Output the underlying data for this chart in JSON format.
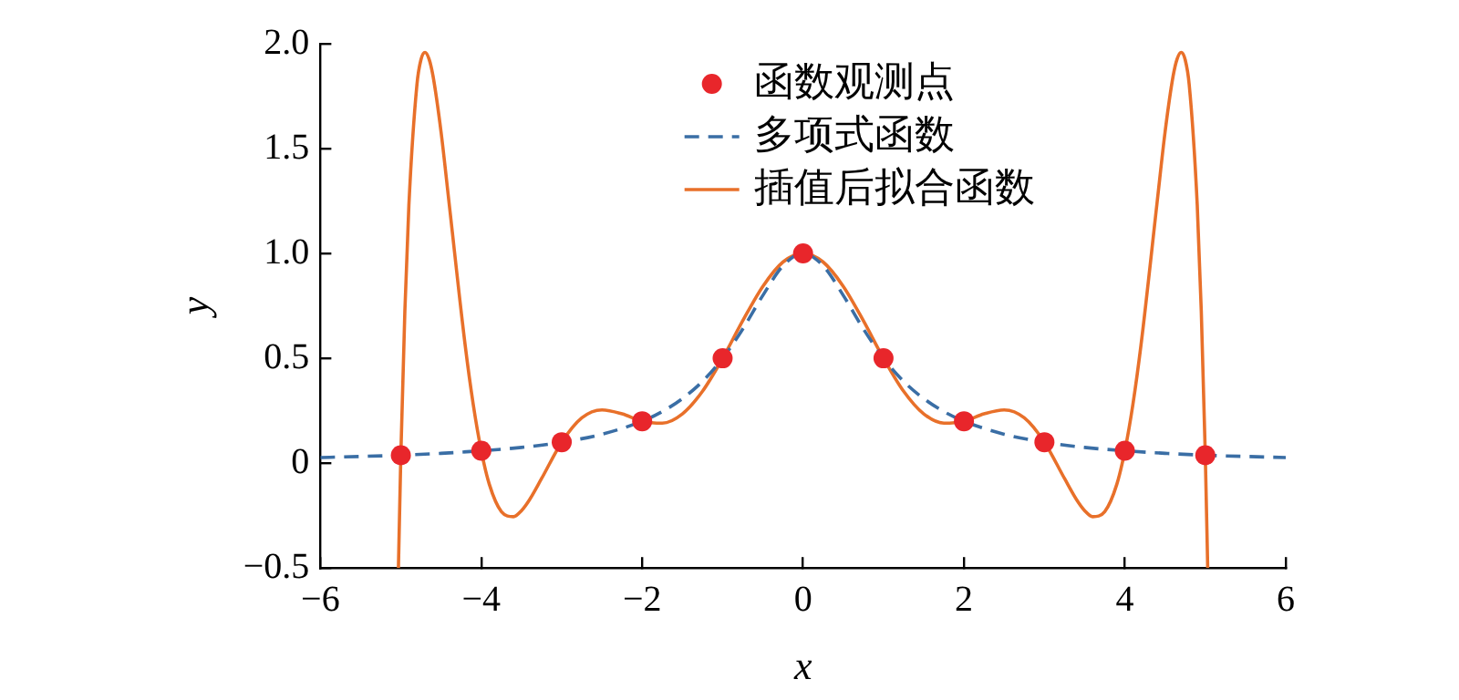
{
  "chart_data": {
    "type": "line",
    "xlabel": "x",
    "ylabel": "y",
    "xlim": [
      -6,
      6
    ],
    "xticks": [
      {
        "value": -6,
        "label": "−6"
      },
      {
        "value": -4,
        "label": "−4"
      },
      {
        "value": -2,
        "label": "−2"
      },
      0,
      2,
      4,
      6
    ],
    "ylim": [
      -0.5,
      2
    ],
    "yticks": [
      {
        "value": -0.5,
        "label": "−0.5"
      },
      0,
      0.5,
      {
        "value": 1,
        "label": "1.0"
      },
      1.5,
      {
        "value": 2,
        "label": "2.0"
      }
    ],
    "grid": false,
    "legend": "top",
    "series": [
      {
        "name": "函数观测点",
        "type": "scatter",
        "marker": "circle",
        "color": "#e8262b",
        "x": [
          -5,
          -4,
          -3,
          -2,
          -1,
          0,
          1,
          2,
          3,
          4,
          5
        ],
        "values": [
          0.038,
          0.059,
          0.1,
          0.2,
          0.5,
          1,
          0.5,
          0.2,
          0.1,
          0.059,
          0.038
        ]
      },
      {
        "name": "多项式函数",
        "type": "line",
        "line_style": "dashed",
        "color": "#3a6ea5",
        "x": [
          -6,
          -5.5,
          -5,
          -4.5,
          -4,
          -3.5,
          -3,
          -2.5,
          -2,
          -1.75,
          -1.5,
          -1.25,
          -1,
          -0.75,
          -0.5,
          -0.25,
          0,
          0.25,
          0.5,
          0.75,
          1,
          1.25,
          1.5,
          1.75,
          2,
          2.5,
          3,
          3.5,
          4,
          4.5,
          5,
          5.5,
          6
        ],
        "values": [
          0.027,
          0.032,
          0.038,
          0.047,
          0.059,
          0.075,
          0.1,
          0.138,
          0.2,
          0.246,
          0.308,
          0.39,
          0.5,
          0.64,
          0.8,
          0.941,
          1,
          0.941,
          0.8,
          0.64,
          0.5,
          0.39,
          0.308,
          0.246,
          0.2,
          0.138,
          0.1,
          0.075,
          0.059,
          0.047,
          0.038,
          0.032,
          0.027
        ]
      },
      {
        "name": "插值后拟合函数",
        "type": "line",
        "line_style": "solid",
        "color": "#e8702a",
        "x": [
          -5.03,
          -5,
          -4.95,
          -4.9,
          -4.8,
          -4.75,
          -4.7,
          -4.65,
          -4.6,
          -4.5,
          -4.4,
          -4.2,
          -4.1,
          -4,
          -3.9,
          -3.75,
          -3.6,
          -3.5,
          -3.4,
          -3.25,
          -3,
          -2.75,
          -2.5,
          -2.25,
          -2,
          -1.75,
          -1.5,
          -1.25,
          -1,
          -0.75,
          -0.5,
          -0.25,
          0,
          0.25,
          0.5,
          0.75,
          1,
          1.25,
          1.5,
          1.75,
          2,
          2.25,
          2.5,
          2.75,
          3,
          3.25,
          3.4,
          3.5,
          3.6,
          3.75,
          3.9,
          4,
          4.1,
          4.2,
          4.4,
          4.5,
          4.6,
          4.65,
          4.7,
          4.75,
          4.8,
          4.9,
          4.95,
          5,
          5.03
        ],
        "values": [
          -0.5,
          0.038,
          0.726,
          1.23,
          1.805,
          1.924,
          1.959,
          1.928,
          1.846,
          1.579,
          1.24,
          0.561,
          0.28,
          0.059,
          -0.101,
          -0.231,
          -0.255,
          -0.226,
          -0.174,
          -0.073,
          0.1,
          0.216,
          0.254,
          0.235,
          0.2,
          0.191,
          0.235,
          0.343,
          0.5,
          0.679,
          0.843,
          0.959,
          1,
          0.959,
          0.843,
          0.679,
          0.5,
          0.343,
          0.235,
          0.191,
          0.2,
          0.235,
          0.254,
          0.216,
          0.1,
          -0.073,
          -0.174,
          -0.226,
          -0.255,
          -0.231,
          -0.101,
          0.059,
          0.28,
          0.561,
          1.24,
          1.579,
          1.846,
          1.928,
          1.959,
          1.924,
          1.805,
          1.23,
          0.726,
          0.038,
          -0.5
        ]
      }
    ]
  }
}
